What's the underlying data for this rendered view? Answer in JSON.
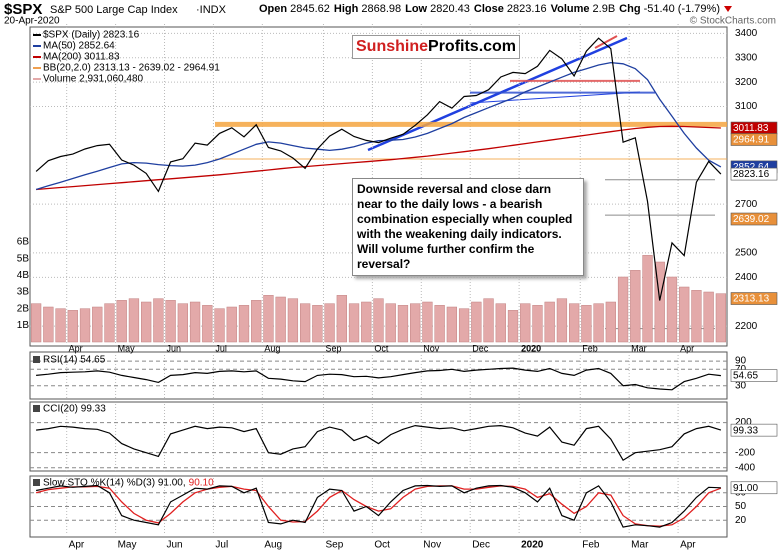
{
  "header": {
    "symbol": "$SPX",
    "name": "S&P 500 Large Cap Index",
    "exchange": "·INDX",
    "date": "20-Apr-2020",
    "credit": "© StockCharts.com",
    "quote": [
      {
        "label": "Open",
        "value": 2845.62
      },
      {
        "label": "High",
        "value": 2868.98
      },
      {
        "label": "Low",
        "value": 2820.43
      },
      {
        "label": "Close",
        "value": 2823.16
      },
      {
        "label": "Volume",
        "value": "2.9B"
      },
      {
        "label": "Chg",
        "value": "-51.40 (-1.79%)"
      }
    ]
  },
  "logo": {
    "first": "Sunshine",
    "second": "Profits.com"
  },
  "note": "Downside reversal and close darn near to the daily lows - a bearish combination especially when coupled with the weakening daily indicators. Will volume further confirm the reversal?",
  "chart_data": [
    {
      "type": "line",
      "categories": [
        null,
        null,
        null,
        "Apr",
        null,
        null,
        null,
        "May",
        null,
        null,
        null,
        "Jun",
        null,
        null,
        null,
        "Jul",
        null,
        null,
        null,
        "Aug",
        null,
        null,
        null,
        null,
        "Sep",
        null,
        null,
        null,
        "Oct",
        null,
        null,
        null,
        "Nov",
        null,
        null,
        null,
        "Dec",
        null,
        null,
        null,
        "2020",
        null,
        null,
        null,
        null,
        "Feb",
        null,
        null,
        null,
        "Mar",
        null,
        null,
        null,
        "Apr",
        null,
        null,
        null
      ],
      "series": [
        {
          "name": "$SPX (Daily) 2823.16",
          "color": "#000000",
          "values": [
            2834,
            2878,
            2895,
            2905,
            2926,
            2940,
            2945,
            2881,
            2860,
            2826,
            2752,
            2873,
            2886,
            2950,
            2942,
            2990,
            3013,
            2976,
            3025,
            2932,
            2918,
            2889,
            2847,
            2926,
            2979,
            3007,
            2977,
            2961,
            2952,
            2970,
            2986,
            3023,
            3066,
            3120,
            3093,
            3141,
            3145,
            3169,
            3221,
            3240,
            3235,
            3265,
            3330,
            3295,
            3225,
            3327,
            3380,
            3337,
            2954,
            2972,
            2711,
            2305,
            2541,
            2489,
            2790,
            2875,
            2823
          ]
        },
        {
          "name": "MA(50) 2852.64",
          "color": "#1f3fa0",
          "values": [
            2760,
            2775,
            2790,
            2805,
            2820,
            2835,
            2850,
            2865,
            2870,
            2868,
            2862,
            2858,
            2856,
            2860,
            2870,
            2885,
            2905,
            2925,
            2945,
            2955,
            2950,
            2940,
            2930,
            2925,
            2920,
            2925,
            2935,
            2950,
            2960,
            2962,
            2965,
            2975,
            2990,
            3010,
            3030,
            3055,
            3075,
            3095,
            3115,
            3135,
            3160,
            3180,
            3200,
            3220,
            3240,
            3255,
            3270,
            3280,
            3275,
            3255,
            3210,
            3130,
            3060,
            2990,
            2930,
            2880,
            2852.64
          ]
        },
        {
          "name": "MA(200) 3011.83",
          "color": "#c00000",
          "values": [
            2760,
            2764,
            2768,
            2772,
            2776,
            2780,
            2784,
            2788,
            2792,
            2796,
            2800,
            2804,
            2808,
            2812,
            2816,
            2820,
            2825,
            2830,
            2835,
            2840,
            2845,
            2850,
            2854,
            2858,
            2862,
            2866,
            2870,
            2874,
            2878,
            2882,
            2887,
            2892,
            2897,
            2903,
            2909,
            2915,
            2921,
            2927,
            2934,
            2941,
            2948,
            2955,
            2962,
            2969,
            2976,
            2983,
            2990,
            2997,
            3004,
            3010,
            3015,
            3018,
            3019,
            3018,
            3016,
            3014,
            3011.83
          ]
        },
        {
          "name": "Volume 2,931,060,480",
          "color": "#e3a9a9",
          "type": "bar",
          "axis": "y2",
          "values": [
            2.3,
            2.1,
            2.0,
            1.9,
            2.0,
            2.1,
            2.3,
            2.5,
            2.6,
            2.4,
            2.6,
            2.5,
            2.3,
            2.4,
            2.2,
            2.0,
            2.1,
            2.2,
            2.5,
            2.8,
            2.7,
            2.6,
            2.3,
            2.2,
            2.3,
            2.8,
            2.3,
            2.4,
            2.6,
            2.3,
            2.2,
            2.3,
            2.4,
            2.2,
            2.1,
            2.0,
            2.4,
            2.6,
            2.3,
            1.9,
            2.3,
            2.2,
            2.4,
            2.6,
            2.3,
            2.2,
            2.3,
            2.4,
            3.9,
            4.3,
            5.2,
            4.8,
            3.9,
            3.3,
            3.1,
            3.0,
            2.9
          ]
        }
      ],
      "legend_extra": [
        {
          "text": "BB(20,2.0) 2313.13 - 2639.02 - 2964.91",
          "color": "#f0a050"
        }
      ],
      "ylim": [
        2135,
        3430
      ],
      "yticks": [
        2200,
        2400,
        2500,
        2700,
        3100,
        3200,
        3300,
        3400
      ],
      "y2lim": [
        0,
        6.6
      ],
      "y2ticks": [
        {
          "value": 1,
          "label": "1B"
        },
        {
          "value": 2,
          "label": "2B"
        },
        {
          "value": 3,
          "label": "3B"
        },
        {
          "value": 4,
          "label": "4B"
        },
        {
          "value": 5,
          "label": "5B"
        },
        {
          "value": 6,
          "label": "6B"
        }
      ],
      "levels": [
        {
          "value": 3027,
          "color": "#f5a540"
        },
        {
          "value": 2885,
          "color": "#f5a540"
        },
        {
          "value": 3157,
          "color": "#3050d0"
        },
        {
          "value": 3205,
          "color": "#e05050"
        },
        {
          "value": 2800,
          "color": "#777777"
        },
        {
          "value": 2655,
          "color": "#777777"
        },
        {
          "value": 2190,
          "color": "#777777"
        }
      ],
      "value_boxes": [
        {
          "value": 3011.83,
          "color": "#c00000"
        },
        {
          "value": 2964.91,
          "color": "#e8903a"
        },
        {
          "value": 2852.64,
          "color": "#1f3fa0"
        },
        {
          "value": 2823.16,
          "color": "#ffffff"
        },
        {
          "value": 2639.02,
          "color": "#e8903a"
        },
        {
          "value": 2313.13,
          "color": "#e8903a"
        }
      ],
      "grid": true
    },
    {
      "type": "line",
      "title": "RSI(14) 54.65",
      "values": [
        55,
        58,
        62,
        63,
        64,
        66,
        63,
        55,
        50,
        45,
        38,
        55,
        57,
        62,
        60,
        65,
        66,
        64,
        66,
        48,
        46,
        42,
        40,
        55,
        58,
        57,
        52,
        53,
        49,
        52,
        57,
        62,
        66,
        67,
        70,
        65,
        68,
        70,
        72,
        73,
        68,
        65,
        72,
        60,
        55,
        68,
        72,
        60,
        30,
        33,
        25,
        22,
        20,
        40,
        48,
        58,
        54.65
      ],
      "color": "#000000",
      "ylim": [
        0,
        100
      ],
      "yticks": [
        30,
        70,
        90
      ],
      "value_boxes": [
        {
          "value": 54.65,
          "color": "#ffffff"
        }
      ],
      "grid": true
    },
    {
      "type": "line",
      "title": "CCI(20) 99.33",
      "values": [
        100,
        120,
        150,
        140,
        120,
        110,
        60,
        -80,
        -150,
        -200,
        -250,
        50,
        100,
        150,
        120,
        140,
        130,
        80,
        120,
        -200,
        -220,
        -150,
        -120,
        80,
        140,
        100,
        -40,
        20,
        -80,
        40,
        110,
        160,
        140,
        120,
        130,
        90,
        120,
        150,
        160,
        130,
        60,
        20,
        140,
        -60,
        -100,
        120,
        150,
        -20,
        -300,
        -200,
        -180,
        -160,
        -120,
        50,
        120,
        150,
        99.33
      ],
      "color": "#000000",
      "ylim": [
        -430,
        420
      ],
      "yticks": [
        -400,
        -200,
        200
      ],
      "value_boxes": [
        {
          "value": 99.33,
          "color": "#ffffff"
        }
      ],
      "grid": true
    },
    {
      "type": "line",
      "title": "Slow STO %K(14) %D(3) 91.00,",
      "title2": "90.10",
      "series": [
        {
          "color": "#000000",
          "values": [
            85,
            90,
            95,
            92,
            94,
            96,
            80,
            30,
            20,
            15,
            10,
            60,
            75,
            90,
            88,
            95,
            94,
            80,
            90,
            15,
            12,
            20,
            15,
            70,
            88,
            85,
            40,
            50,
            30,
            60,
            85,
            95,
            96,
            94,
            95,
            80,
            90,
            95,
            96,
            92,
            80,
            60,
            90,
            30,
            20,
            80,
            95,
            60,
            5,
            10,
            8,
            5,
            15,
            40,
            70,
            92,
            91
          ]
        },
        {
          "color": "#e02020",
          "values": [
            80,
            87,
            90,
            93,
            93,
            94,
            90,
            60,
            35,
            20,
            14,
            35,
            60,
            80,
            88,
            92,
            94,
            88,
            85,
            50,
            20,
            16,
            17,
            40,
            70,
            85,
            65,
            50,
            40,
            45,
            70,
            88,
            94,
            95,
            95,
            88,
            88,
            92,
            95,
            94,
            88,
            70,
            78,
            55,
            35,
            50,
            80,
            75,
            30,
            12,
            8,
            7,
            10,
            25,
            50,
            80,
            90.1
          ]
        }
      ],
      "ylim": [
        -8,
        108
      ],
      "yticks": [
        20,
        50,
        80
      ],
      "value_boxes": [
        {
          "value": 91,
          "label": "91.00",
          "color": "#ffffff"
        }
      ],
      "grid": true
    }
  ]
}
